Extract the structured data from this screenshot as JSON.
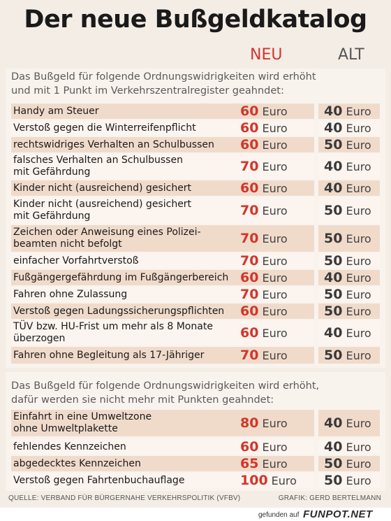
{
  "title": "Der neue Bußgeldkatalog",
  "columns": {
    "neu": "NEU",
    "alt": "ALT"
  },
  "unit": "Euro",
  "section1": {
    "intro_line1": "Das Bußgeld für folgende Ordnungswidrigkeiten wird erhöht",
    "intro_line2": "und mit 1 Punkt im Verkehrszentralregister geahndet:",
    "rows": [
      {
        "label_line1": "Handy am Steuer",
        "label_line2": "",
        "neu": "60",
        "alt": "40"
      },
      {
        "label_line1": "Verstoß gegen die Winterreifenpflicht",
        "label_line2": "",
        "neu": "60",
        "alt": "40"
      },
      {
        "label_line1": "rechtswidriges Verhalten an Schulbussen",
        "label_line2": "",
        "neu": "60",
        "alt": "50"
      },
      {
        "label_line1": "falsches Verhalten an Schulbussen",
        "label_line2": "mit Gefährdung",
        "neu": "70",
        "alt": "40"
      },
      {
        "label_line1": "Kinder nicht (ausreichend) gesichert",
        "label_line2": "",
        "neu": "60",
        "alt": "40"
      },
      {
        "label_line1": "Kinder nicht (ausreichend) gesichert",
        "label_line2": "mit Gefährdung",
        "neu": "70",
        "alt": "50"
      },
      {
        "label_line1": "Zeichen oder Anweisung eines Polizei-",
        "label_line2": "beamten nicht befolgt",
        "neu": "70",
        "alt": "50"
      },
      {
        "label_line1": "einfacher Vorfahrtverstoß",
        "label_line2": "",
        "neu": "70",
        "alt": "50"
      },
      {
        "label_line1": "Fußgängergefährdung im Fußgängerbereich",
        "label_line2": "",
        "neu": "60",
        "alt": "40"
      },
      {
        "label_line1": "Fahren ohne Zulassung",
        "label_line2": "",
        "neu": "70",
        "alt": "50"
      },
      {
        "label_line1": "Verstoß gegen Ladungssicherungspflichten",
        "label_line2": "",
        "neu": "60",
        "alt": "50"
      },
      {
        "label_line1": "TÜV bzw. HU-Frist um mehr als 8 Monate",
        "label_line2": "überzogen",
        "neu": "60",
        "alt": "40"
      },
      {
        "label_line1": "Fahren ohne Begleitung als 17-Jähriger",
        "label_line2": "",
        "neu": "70",
        "alt": "50"
      }
    ]
  },
  "section2": {
    "intro_line1": "Das Bußgeld für folgende Ordnungswidrigkeiten wird erhöht,",
    "intro_line2": "dafür werden sie nicht mehr mit Punkten geahndet:",
    "rows": [
      {
        "label_line1": "Einfahrt in eine Umweltzone",
        "label_line2": "ohne Umweltplakette",
        "neu": "80",
        "alt": "40"
      },
      {
        "label_line1": "fehlendes Kennzeichen",
        "label_line2": "",
        "neu": "60",
        "alt": "40"
      },
      {
        "label_line1": "abgedecktes Kennzeichen",
        "label_line2": "",
        "neu": "65",
        "alt": "50"
      },
      {
        "label_line1": "Verstoß gegen Fahrtenbuchauflage",
        "label_line2": "",
        "neu": "100",
        "alt": "50"
      }
    ]
  },
  "footer": {
    "source": "QUELLE: VERBAND FÜR BÜRGERNAHE VERKEHRSPOLITIK (VFBV)",
    "credit": "GRAFIK: GERD BERTELMANN"
  },
  "watermark": {
    "text": "gefunden auf",
    "brand": "FUNPOT.NET"
  }
}
